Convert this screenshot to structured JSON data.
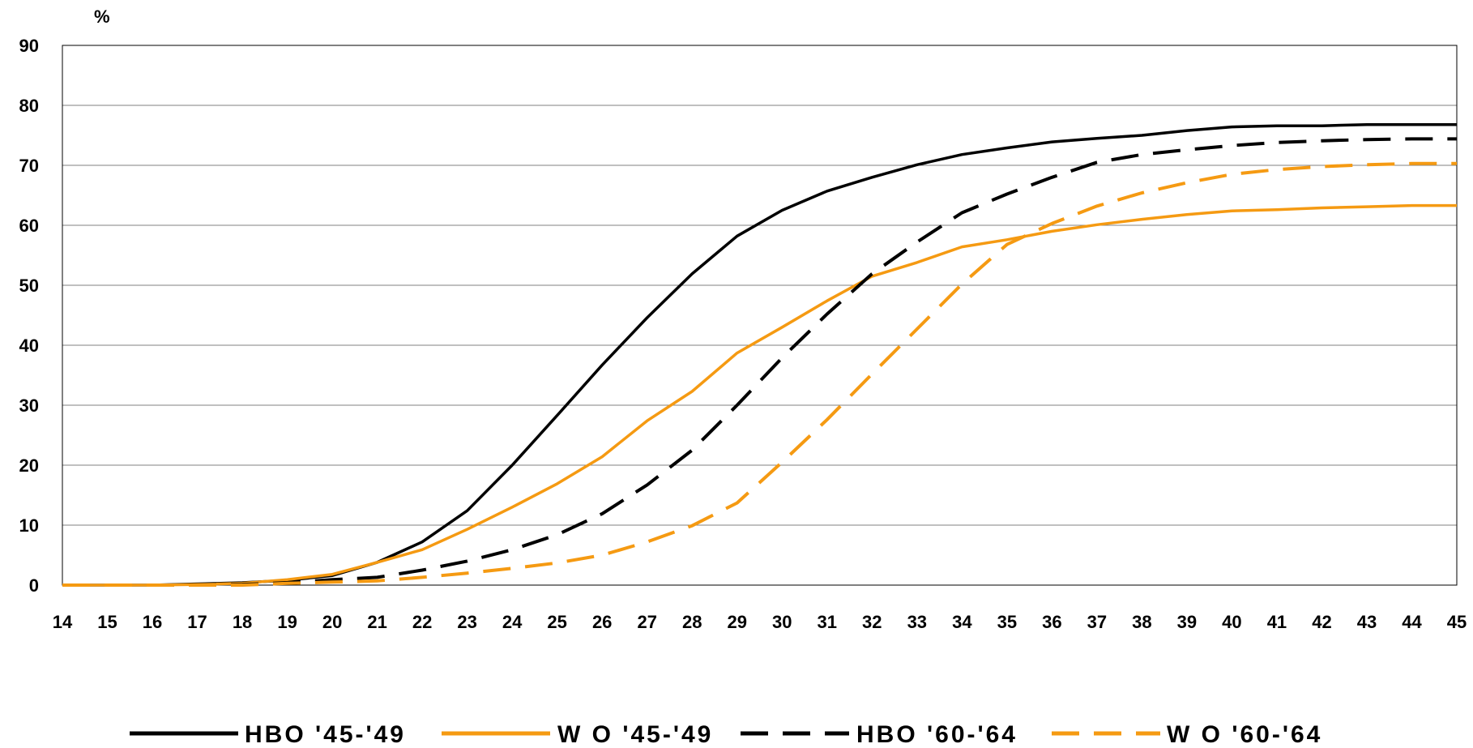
{
  "chart_data": {
    "type": "line",
    "title": "",
    "xlabel": "",
    "ylabel": "%",
    "ylim": [
      0,
      90
    ],
    "xlim": [
      14,
      45
    ],
    "y_ticks": [
      "0",
      "10",
      "20",
      "30",
      "40",
      "50",
      "60",
      "70",
      "80",
      "90"
    ],
    "x": [
      "14",
      "15",
      "16",
      "17",
      "18",
      "19",
      "20",
      "21",
      "22",
      "23",
      "24",
      "25",
      "26",
      "27",
      "28",
      "29",
      "30",
      "31",
      "32",
      "33",
      "34",
      "35",
      "36",
      "37",
      "38",
      "39",
      "40",
      "41",
      "42",
      "43",
      "44",
      "45"
    ],
    "grid": "horizontal",
    "legend_position": "bottom",
    "series": [
      {
        "name": "HBO '45-'49",
        "color": "#000000",
        "dash": "solid",
        "values": [
          0,
          0,
          0,
          0.2,
          0.4,
          0.8,
          1.6,
          3.8,
          7.2,
          12.4,
          20,
          28.3,
          36.7,
          44.6,
          51.9,
          58.2,
          62.5,
          65.7,
          68,
          70.1,
          71.8,
          72.9,
          73.9,
          74.5,
          75,
          75.8,
          76.4,
          76.6,
          76.6,
          76.8,
          76.8,
          76.8
        ]
      },
      {
        "name": "W O '45-'49",
        "color": "#f59a12",
        "dash": "solid",
        "values": [
          0,
          0,
          0,
          0.1,
          0.3,
          0.9,
          1.8,
          3.8,
          5.9,
          9.3,
          13,
          16.9,
          21.4,
          27.4,
          32.3,
          38.7,
          43,
          47.4,
          51.5,
          53.8,
          56.4,
          57.6,
          59,
          60.1,
          61,
          61.8,
          62.4,
          62.6,
          62.9,
          63.1,
          63.3,
          63.3
        ]
      },
      {
        "name": "HBO '60-'64",
        "color": "#000000",
        "dash": "dashed",
        "values": [
          0,
          0,
          0,
          0,
          0.1,
          0.4,
          0.9,
          1.3,
          2.5,
          4,
          5.9,
          8.4,
          11.9,
          16.7,
          22.5,
          30,
          37.9,
          45.2,
          51.9,
          57.2,
          62.1,
          65.2,
          68,
          70.5,
          71.8,
          72.6,
          73.3,
          73.8,
          74.1,
          74.3,
          74.4,
          74.4
        ]
      },
      {
        "name": "W O '60-'64",
        "color": "#f59a12",
        "dash": "dashed",
        "values": [
          0,
          0,
          0,
          0,
          0,
          0.3,
          0.5,
          0.7,
          1.3,
          2,
          2.8,
          3.7,
          5,
          7.2,
          9.9,
          13.7,
          20.5,
          27.6,
          35.2,
          42.7,
          50.2,
          56.8,
          60.3,
          63.2,
          65.4,
          67.1,
          68.5,
          69.3,
          69.8,
          70.1,
          70.3,
          70.3
        ]
      }
    ]
  }
}
